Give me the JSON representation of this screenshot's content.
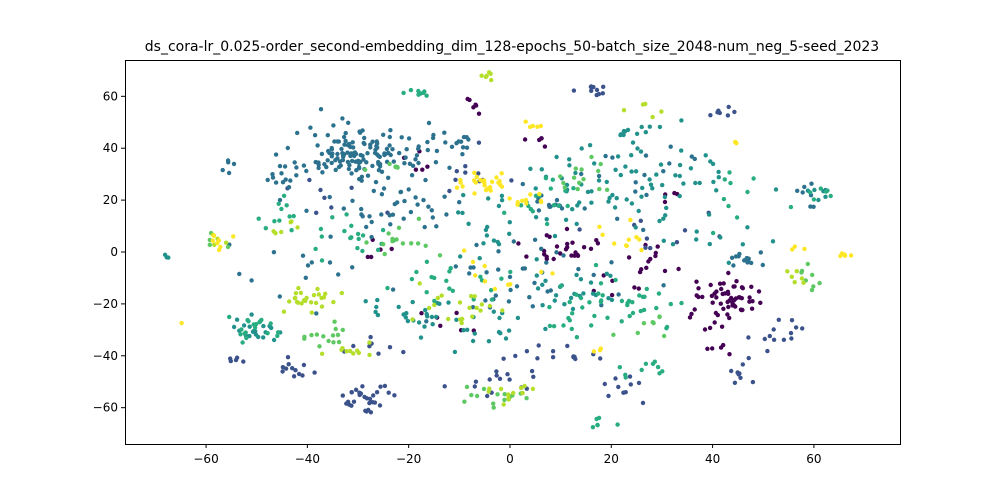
{
  "chart_data": {
    "type": "scatter",
    "title": "ds_cora-lr_0.025-order_second-embedding_dim_128-epochs_50-batch_size_2048-num_neg_5-seed_2023",
    "xlabel": "",
    "ylabel": "",
    "xlim": [
      -76,
      77
    ],
    "ylim": [
      -74,
      74
    ],
    "xticks": [
      -60,
      -40,
      -20,
      0,
      20,
      40,
      60
    ],
    "xtick_labels": [
      "−60",
      "−40",
      "−20",
      "0",
      "20",
      "40",
      "60"
    ],
    "yticks": [
      -60,
      -40,
      -20,
      0,
      20,
      40,
      60
    ],
    "ytick_labels": [
      "−60",
      "−40",
      "−20",
      "0",
      "20",
      "40",
      "60"
    ],
    "grid": false,
    "legend": "none",
    "colormap": "viridis",
    "series": [
      {
        "color": "#440154",
        "clusters": [
          {
            "x": 42,
            "y": -18,
            "sx": 3.5,
            "sy": 4,
            "n": 60
          },
          {
            "x": 10,
            "y": 3,
            "sx": 4,
            "sy": 3,
            "n": 25
          },
          {
            "x": 28,
            "y": -2,
            "sx": 3,
            "sy": 3,
            "n": 12
          },
          {
            "x": -8,
            "y": 56,
            "sx": 1.5,
            "sy": 2,
            "n": 6
          },
          {
            "x": 5,
            "y": 42,
            "sx": 1.5,
            "sy": 1.5,
            "n": 5
          },
          {
            "x": -18,
            "y": 34,
            "sx": 2,
            "sy": 2,
            "n": 5
          },
          {
            "x": -12,
            "y": -28,
            "sx": 3,
            "sy": 3,
            "n": 6
          },
          {
            "x": 20,
            "y": -12,
            "sx": 3,
            "sy": 3,
            "n": 6
          },
          {
            "x": 40,
            "y": -38,
            "sx": 2,
            "sy": 2,
            "n": 5
          },
          {
            "x": -26,
            "y": 2,
            "sx": 2,
            "sy": 2,
            "n": 5
          },
          {
            "x": 33,
            "y": 22,
            "sx": 1.5,
            "sy": 1.5,
            "n": 4
          }
        ]
      },
      {
        "color": "#3b528b",
        "clusters": [
          {
            "x": -28,
            "y": -57,
            "sx": 3,
            "sy": 3,
            "n": 30
          },
          {
            "x": -3,
            "y": -50,
            "sx": 4,
            "sy": 3,
            "n": 14
          },
          {
            "x": 17,
            "y": 62,
            "sx": 2,
            "sy": 1.5,
            "n": 10
          },
          {
            "x": 42,
            "y": 54,
            "sx": 1.5,
            "sy": 1,
            "n": 7
          },
          {
            "x": -42,
            "y": -46,
            "sx": 2,
            "sy": 3,
            "n": 12
          },
          {
            "x": 10,
            "y": -40,
            "sx": 5,
            "sy": 3,
            "n": 15
          },
          {
            "x": -55,
            "y": -41,
            "sx": 1.5,
            "sy": 1.5,
            "n": 5
          },
          {
            "x": 45,
            "y": -48,
            "sx": 2,
            "sy": 2,
            "n": 8
          },
          {
            "x": 55,
            "y": -30,
            "sx": 2,
            "sy": 3,
            "n": 8
          },
          {
            "x": -26,
            "y": -36,
            "sx": 3,
            "sy": 2,
            "n": 8
          },
          {
            "x": 22,
            "y": -55,
            "sx": 3,
            "sy": 3,
            "n": 10
          },
          {
            "x": 48,
            "y": -35,
            "sx": 3,
            "sy": 2,
            "n": 6
          },
          {
            "x": -5,
            "y": 30,
            "sx": 6,
            "sy": 6,
            "n": 10
          },
          {
            "x": 30,
            "y": 10,
            "sx": 5,
            "sy": 5,
            "n": 10
          },
          {
            "x": -35,
            "y": 20,
            "sx": 5,
            "sy": 5,
            "n": 8
          }
        ]
      },
      {
        "color": "#2c728e",
        "clusters": [
          {
            "x": -30,
            "y": 38,
            "sx": 6,
            "sy": 5,
            "n": 140
          },
          {
            "x": -22,
            "y": 18,
            "sx": 6,
            "sy": 6,
            "n": 40
          },
          {
            "x": -45,
            "y": 28,
            "sx": 3,
            "sy": 3,
            "n": 14
          },
          {
            "x": -12,
            "y": 42,
            "sx": 4,
            "sy": 3,
            "n": 18
          },
          {
            "x": 10,
            "y": 18,
            "sx": 3,
            "sy": 3,
            "n": 14
          },
          {
            "x": 45,
            "y": -3,
            "sx": 3,
            "sy": 2,
            "n": 14
          },
          {
            "x": -55,
            "y": 35,
            "sx": 1.5,
            "sy": 1.5,
            "n": 5
          },
          {
            "x": 60,
            "y": 22,
            "sx": 1.5,
            "sy": 3,
            "n": 8
          },
          {
            "x": 5,
            "y": -10,
            "sx": 10,
            "sy": 8,
            "n": 40
          },
          {
            "x": -35,
            "y": -5,
            "sx": 8,
            "sy": 8,
            "n": 15
          },
          {
            "x": 30,
            "y": 30,
            "sx": 8,
            "sy": 6,
            "n": 15
          }
        ]
      },
      {
        "color": "#21918c",
        "clusters": [
          {
            "x": 20,
            "y": 25,
            "sx": 8,
            "sy": 8,
            "n": 55
          },
          {
            "x": 35,
            "y": 30,
            "sx": 5,
            "sy": 4,
            "n": 18
          },
          {
            "x": -50,
            "y": -30,
            "sx": 3,
            "sy": 2,
            "n": 22
          },
          {
            "x": -20,
            "y": -25,
            "sx": 5,
            "sy": 4,
            "n": 25
          },
          {
            "x": 25,
            "y": 45,
            "sx": 4,
            "sy": 3,
            "n": 14
          },
          {
            "x": 12,
            "y": -15,
            "sx": 5,
            "sy": 4,
            "n": 25
          },
          {
            "x": -68,
            "y": -1,
            "sx": 0.6,
            "sy": 0.6,
            "n": 3
          },
          {
            "x": 60,
            "y": 22,
            "sx": 1,
            "sy": 2,
            "n": 5
          },
          {
            "x": -5,
            "y": -30,
            "sx": 5,
            "sy": 4,
            "n": 15
          },
          {
            "x": 0,
            "y": 10,
            "sx": 8,
            "sy": 8,
            "n": 25
          },
          {
            "x": 40,
            "y": 5,
            "sx": 5,
            "sy": 5,
            "n": 10
          }
        ]
      },
      {
        "color": "#27ad81",
        "clusters": [
          {
            "x": 20,
            "y": -20,
            "sx": 6,
            "sy": 6,
            "n": 45
          },
          {
            "x": -18,
            "y": 62,
            "sx": 1.5,
            "sy": 1,
            "n": 8
          },
          {
            "x": -50,
            "y": -30,
            "sx": 3,
            "sy": 3,
            "n": 18
          },
          {
            "x": -32,
            "y": 5,
            "sx": 5,
            "sy": 5,
            "n": 20
          },
          {
            "x": 8,
            "y": 20,
            "sx": 4,
            "sy": 5,
            "n": 16
          },
          {
            "x": 28,
            "y": -45,
            "sx": 3,
            "sy": 2,
            "n": 10
          },
          {
            "x": 62,
            "y": 24,
            "sx": 1.5,
            "sy": 2,
            "n": 6
          },
          {
            "x": 18,
            "y": -65,
            "sx": 2,
            "sy": 1.5,
            "n": 6
          },
          {
            "x": -12,
            "y": -10,
            "sx": 5,
            "sy": 5,
            "n": 20
          },
          {
            "x": -45,
            "y": 15,
            "sx": 5,
            "sy": 5,
            "n": 10
          },
          {
            "x": 45,
            "y": 20,
            "sx": 5,
            "sy": 5,
            "n": 10
          }
        ]
      },
      {
        "color": "#5ec962",
        "clusters": [
          {
            "x": -3,
            "y": -55,
            "sx": 3,
            "sy": 2,
            "n": 14
          },
          {
            "x": -36,
            "y": -32,
            "sx": 3,
            "sy": 2,
            "n": 14
          },
          {
            "x": 58,
            "y": -10,
            "sx": 2,
            "sy": 2,
            "n": 8
          },
          {
            "x": -24,
            "y": 33,
            "sx": 2,
            "sy": 2,
            "n": 6
          },
          {
            "x": 12,
            "y": 30,
            "sx": 5,
            "sy": 4,
            "n": 14
          },
          {
            "x": -20,
            "y": 5,
            "sx": 4,
            "sy": 4,
            "n": 14
          },
          {
            "x": 30,
            "y": -30,
            "sx": 4,
            "sy": 3,
            "n": 8
          },
          {
            "x": -58,
            "y": 5,
            "sx": 1,
            "sy": 2,
            "n": 4
          }
        ]
      },
      {
        "color": "#b5de2b",
        "clusters": [
          {
            "x": -40,
            "y": -18,
            "sx": 3,
            "sy": 3,
            "n": 25
          },
          {
            "x": -5,
            "y": 68,
            "sx": 0.8,
            "sy": 0.5,
            "n": 6
          },
          {
            "x": -32,
            "y": -40,
            "sx": 3,
            "sy": 2,
            "n": 10
          },
          {
            "x": -10,
            "y": -20,
            "sx": 4,
            "sy": 4,
            "n": 20
          },
          {
            "x": 0,
            "y": -55,
            "sx": 3,
            "sy": 2,
            "n": 12
          },
          {
            "x": -45,
            "y": 10,
            "sx": 2,
            "sy": 2,
            "n": 6
          },
          {
            "x": 28,
            "y": 55,
            "sx": 2,
            "sy": 2,
            "n": 5
          },
          {
            "x": 57,
            "y": -10,
            "sx": 1.5,
            "sy": 1.5,
            "n": 6
          },
          {
            "x": -58,
            "y": 5,
            "sx": 1,
            "sy": 1.5,
            "n": 4
          }
        ]
      },
      {
        "color": "#fde725",
        "clusters": [
          {
            "x": -5,
            "y": 27,
            "sx": 3,
            "sy": 2,
            "n": 25
          },
          {
            "x": 2,
            "y": 20,
            "sx": 2,
            "sy": 1.5,
            "n": 10
          },
          {
            "x": 5,
            "y": 48,
            "sx": 0.8,
            "sy": 0.8,
            "n": 5
          },
          {
            "x": -58,
            "y": 5,
            "sx": 1.5,
            "sy": 1.5,
            "n": 8
          },
          {
            "x": 66,
            "y": -1,
            "sx": 0.8,
            "sy": 0.8,
            "n": 5
          },
          {
            "x": 22,
            "y": 5,
            "sx": 3,
            "sy": 3,
            "n": 10
          },
          {
            "x": -3,
            "y": -10,
            "sx": 4,
            "sy": 4,
            "n": 10
          },
          {
            "x": -65,
            "y": -27,
            "sx": 0.5,
            "sy": 0.5,
            "n": 1
          },
          {
            "x": 45,
            "y": 42,
            "sx": 0.6,
            "sy": 0.6,
            "n": 3
          },
          {
            "x": 57,
            "y": 1,
            "sx": 0.8,
            "sy": 0.8,
            "n": 3
          },
          {
            "x": 17,
            "y": -38,
            "sx": 1,
            "sy": 1,
            "n": 3
          }
        ]
      }
    ]
  }
}
